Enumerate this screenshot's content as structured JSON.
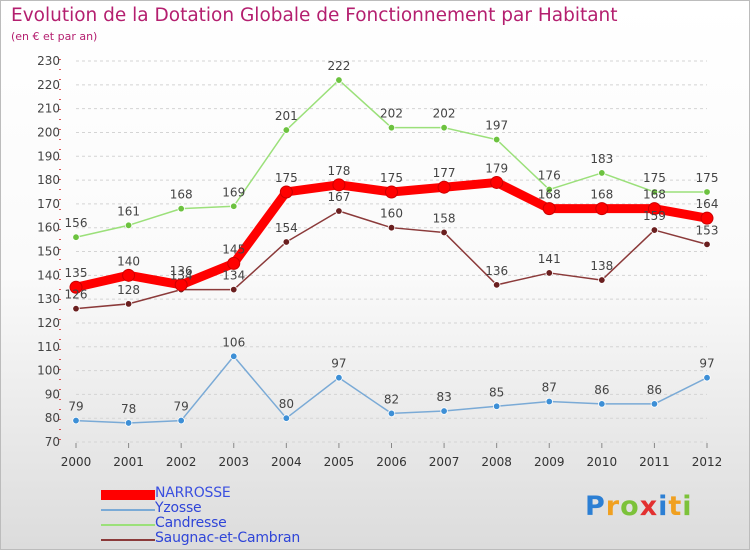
{
  "header": {
    "title": "Evolution de la Dotation Globale de Fonctionnement par Habitant",
    "subtitle": "(en € et par an)"
  },
  "logo": {
    "letters": [
      "P",
      "r",
      "o",
      "x",
      "i",
      "t",
      "i"
    ]
  },
  "chart_data": {
    "type": "line",
    "title": "Evolution de la Dotation Globale de Fonctionnement par Habitant",
    "subtitle": "(en € et par an)",
    "xlabel": "",
    "ylabel": "",
    "x": [
      "2000",
      "2001",
      "2002",
      "2003",
      "2004",
      "2005",
      "2006",
      "2007",
      "2008",
      "2009",
      "2010",
      "2011",
      "2012"
    ],
    "ylim": [
      70,
      230
    ],
    "yticks": [
      70,
      80,
      90,
      100,
      110,
      120,
      130,
      140,
      150,
      160,
      170,
      180,
      190,
      200,
      210,
      220,
      230
    ],
    "grid": "horizontal dashed",
    "legend_position": "bottom-left",
    "series": [
      {
        "name": "NARROSSE",
        "color": "#ff0000",
        "marker": "#ff0000",
        "values": [
          135,
          140,
          136,
          145,
          175,
          178,
          175,
          177,
          179,
          168,
          168,
          168,
          164
        ]
      },
      {
        "name": "Yzosse",
        "color": "#7aaad6",
        "marker": "#3d8fd6",
        "values": [
          79,
          78,
          79,
          106,
          80,
          97,
          82,
          83,
          85,
          87,
          86,
          86,
          97
        ]
      },
      {
        "name": "Candresse",
        "color": "#9be07a",
        "marker": "#6cc23f",
        "values": [
          156,
          161,
          168,
          169,
          201,
          222,
          202,
          202,
          197,
          176,
          183,
          175,
          175
        ]
      },
      {
        "name": "Saugnac-et-Cambran",
        "color": "#8b3a3a",
        "marker": "#6a1f1f",
        "values": [
          126,
          128,
          134,
          134,
          154,
          167,
          160,
          158,
          136,
          141,
          138,
          159,
          153
        ]
      }
    ]
  }
}
